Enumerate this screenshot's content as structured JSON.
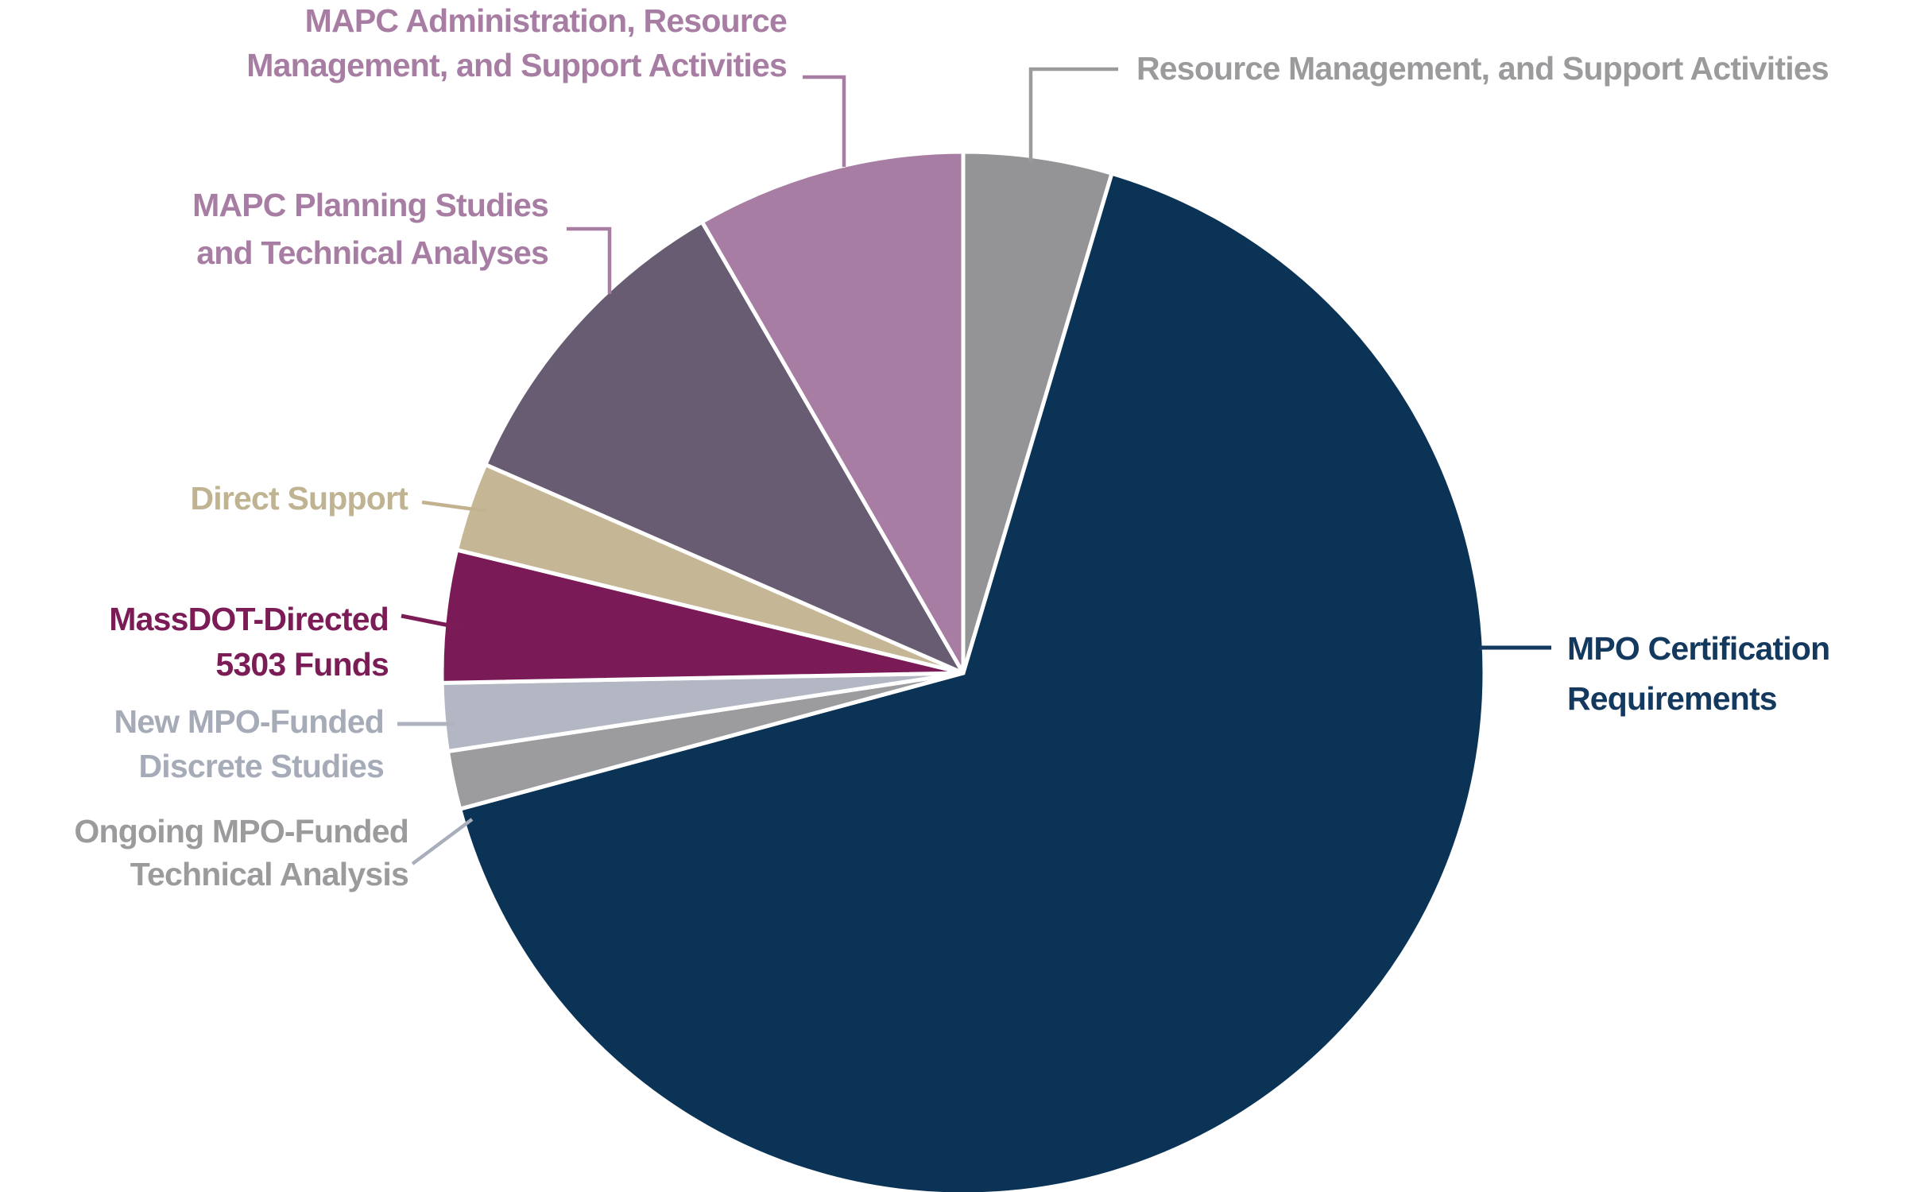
{
  "chart_data": {
    "type": "pie",
    "title": "",
    "direction": "clockwise",
    "start_angle_deg": 0,
    "legend": "none (direct labels with leader lines)",
    "values_note": "percent shares estimated from slice angles; no numeric labels are shown in the figure",
    "slices": [
      {
        "id": "ctps-admin-resource-support",
        "label": "Resource Management, and Support Activities",
        "label_lines": [
          "Resource Management, and Support Activities"
        ],
        "value": 4.6,
        "color": "#949497",
        "label_color": "#9B9B9D",
        "leader_color": "#9B9B9D"
      },
      {
        "id": "mpo-certification",
        "label": "MPO Certification Requirements",
        "label_lines": [
          "MPO Certification",
          "Requirements"
        ],
        "value": 66.2,
        "color": "#0B3355",
        "label_color": "#14395E",
        "leader_color": "#14395E"
      },
      {
        "id": "ongoing-mpo-funded",
        "label": "Ongoing MPO-Funded Technical Analysis",
        "label_lines": [
          "Ongoing MPO-Funded",
          "Technical Analysis"
        ],
        "value": 1.8,
        "color": "#9C9B9E",
        "label_color": "#9B9B9D",
        "leader_color": "#A9AEBB"
      },
      {
        "id": "new-mpo-funded",
        "label": "New MPO-Funded Discrete Studies",
        "label_lines": [
          "New MPO-Funded",
          "Discrete Studies"
        ],
        "value": 2.1,
        "color": "#B3B7C3",
        "label_color": "#A6ABB8",
        "leader_color": "#AEB3BF"
      },
      {
        "id": "massdot-5303",
        "label": "MassDOT-Directed 5303 Funds",
        "label_lines": [
          "MassDOT-Directed",
          "5303 Funds"
        ],
        "value": 4.1,
        "color": "#7A1A56",
        "label_color": "#7B1C57",
        "leader_color": "#7B1C57"
      },
      {
        "id": "direct-support",
        "label": "Direct Support",
        "label_lines": [
          "Direct Support"
        ],
        "value": 2.75,
        "color": "#C5B795",
        "label_color": "#BFB392",
        "leader_color": "#C2B290"
      },
      {
        "id": "mapc-planning",
        "label": "MAPC Planning Studies and Technical Analyses",
        "label_lines": [
          "MAPC Planning Studies",
          "and Technical Analyses"
        ],
        "value": 10.1,
        "color": "#685C72",
        "label_color": "#A87DA4",
        "leader_color": "#A87DA4"
      },
      {
        "id": "mapc-admin",
        "label": "MAPC Administration, Resource Management, and Support Activities",
        "label_lines": [
          "MAPC Administration, Resource",
          "Management, and Support Activities"
        ],
        "value": 8.35,
        "color": "#A77DA3",
        "label_color": "#A87DA4",
        "leader_color": "#A87DA4"
      }
    ]
  }
}
